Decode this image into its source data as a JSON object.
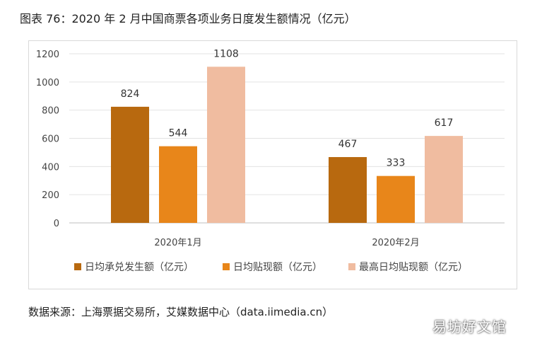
{
  "title": "图表 76：2020 年 2 月中国商票各项业务日度发生额情况（亿元）",
  "source": "数据来源：上海票据交易所，艾媒数据中心（data.iimedia.cn）",
  "watermark": "易坊好文馆",
  "chart_data": {
    "type": "bar",
    "categories": [
      "2020年1月",
      "2020年2月"
    ],
    "series": [
      {
        "name": "日均承兑发生额（亿元）",
        "values": [
          824,
          467
        ],
        "color": "#b8690f"
      },
      {
        "name": "日均贴现额（亿元）",
        "values": [
          544,
          333
        ],
        "color": "#e8861a"
      },
      {
        "name": "最高日均贴现额（亿元）",
        "values": [
          1108,
          617
        ],
        "color": "#f0bca0"
      }
    ],
    "ylim": [
      0,
      1200
    ],
    "yticks": [
      0,
      200,
      400,
      600,
      800,
      1000,
      1200
    ],
    "grid": true,
    "legend": "bottom",
    "data_labels": true
  }
}
